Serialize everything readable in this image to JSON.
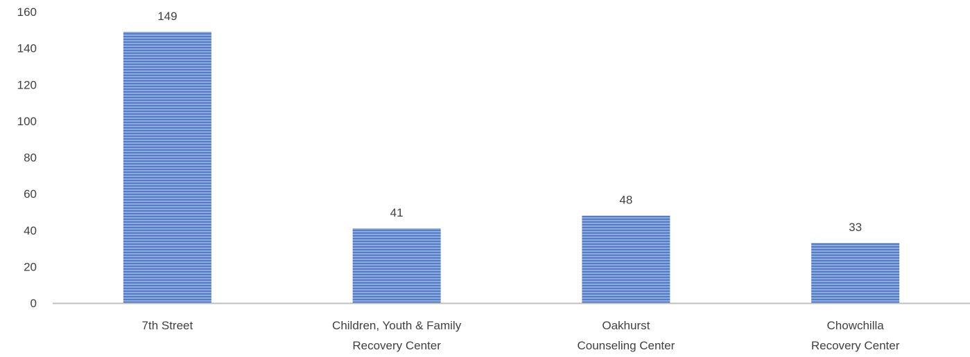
{
  "chart_data": {
    "type": "bar",
    "categories": [
      [
        "7th Street"
      ],
      [
        "Children, Youth & Family",
        "Recovery Center"
      ],
      [
        "Oakhurst",
        "Counseling Center"
      ],
      [
        "Chowchilla",
        "Recovery Center"
      ]
    ],
    "values": [
      149,
      41,
      48,
      33
    ],
    "data_labels": [
      "149",
      "41",
      "48",
      "33"
    ],
    "title": "",
    "xlabel": "",
    "ylabel": "",
    "ylim": [
      0,
      160
    ],
    "yticks": [
      "0",
      "20",
      "40",
      "60",
      "80",
      "100",
      "120",
      "140",
      "160"
    ],
    "grid": false,
    "legend": "none",
    "bar_fill_pattern": "horizontal-stripes",
    "colors": {
      "bar_light": "#8eaadb",
      "bar_dark": "#4472c4",
      "axis": "#bfbfbf",
      "text": "#404040"
    }
  }
}
